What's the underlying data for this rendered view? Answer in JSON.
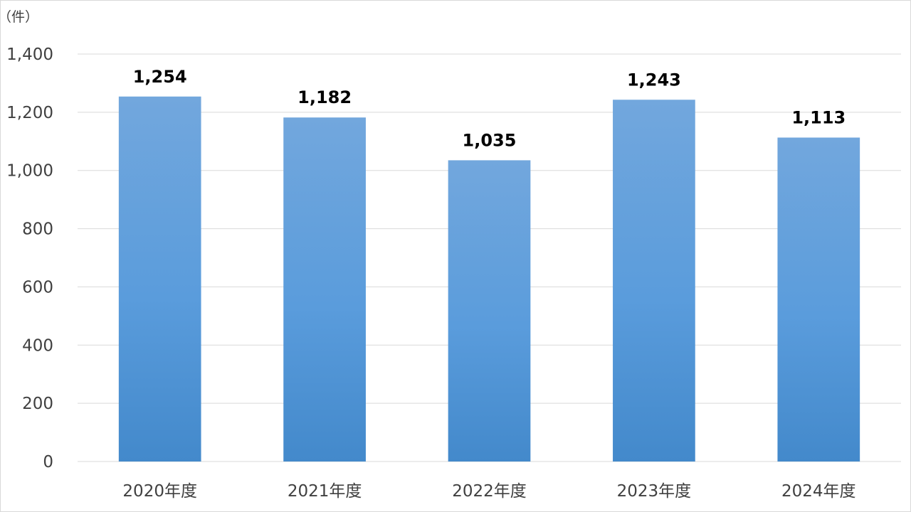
{
  "chart_data": {
    "type": "bar",
    "unit": "（件）",
    "categories": [
      "2020年度",
      "2021年度",
      "2022年度",
      "2023年度",
      "2024年度"
    ],
    "values": [
      1254,
      1182,
      1035,
      1243,
      1113
    ],
    "data_labels": [
      "1,254",
      "1,182",
      "1,035",
      "1,243",
      "1,113"
    ],
    "ylim": [
      0,
      1400
    ],
    "yticks": [
      0,
      200,
      400,
      600,
      800,
      1000,
      1200,
      1400
    ],
    "ytick_labels": [
      "0",
      "200",
      "400",
      "600",
      "800",
      "1,000",
      "1,200",
      "1,400"
    ],
    "grid": true,
    "legend": "none",
    "colors": {
      "bar_top": "#72a7dd",
      "bar_bottom": "#4389cb",
      "grid": "#d9d9d9",
      "axis": "#d9d9d9"
    }
  }
}
